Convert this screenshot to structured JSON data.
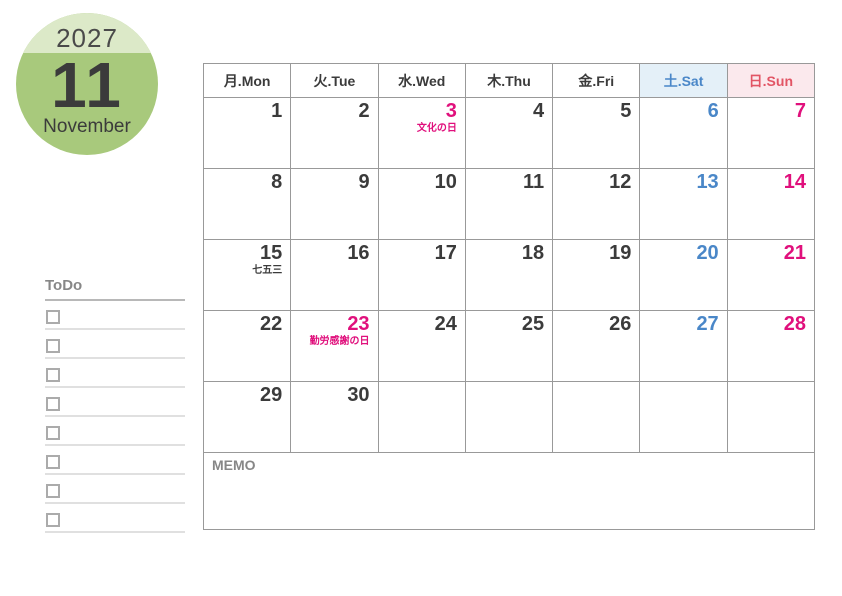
{
  "badge": {
    "year": "2027",
    "month_number": "11",
    "month_name": "November"
  },
  "todo": {
    "label": "ToDo",
    "rows": 8
  },
  "calendar": {
    "weekday_headers": [
      {
        "label": "月.Mon",
        "type": "weekday"
      },
      {
        "label": "火.Tue",
        "type": "weekday"
      },
      {
        "label": "水.Wed",
        "type": "weekday"
      },
      {
        "label": "木.Thu",
        "type": "weekday"
      },
      {
        "label": "金.Fri",
        "type": "weekday"
      },
      {
        "label": "土.Sat",
        "type": "saturday"
      },
      {
        "label": "日.Sun",
        "type": "sunday"
      }
    ],
    "weeks": [
      [
        {
          "date": "1"
        },
        {
          "date": "2"
        },
        {
          "date": "3",
          "type": "holiday",
          "label": "文化の日",
          "label_type": "holiday"
        },
        {
          "date": "4"
        },
        {
          "date": "5"
        },
        {
          "date": "6",
          "type": "saturday"
        },
        {
          "date": "7",
          "type": "sunday"
        }
      ],
      [
        {
          "date": "8"
        },
        {
          "date": "9"
        },
        {
          "date": "10"
        },
        {
          "date": "11"
        },
        {
          "date": "12"
        },
        {
          "date": "13",
          "type": "saturday"
        },
        {
          "date": "14",
          "type": "sunday"
        }
      ],
      [
        {
          "date": "15",
          "label": "七五三",
          "label_type": "note"
        },
        {
          "date": "16"
        },
        {
          "date": "17"
        },
        {
          "date": "18"
        },
        {
          "date": "19"
        },
        {
          "date": "20",
          "type": "saturday"
        },
        {
          "date": "21",
          "type": "sunday"
        }
      ],
      [
        {
          "date": "22"
        },
        {
          "date": "23",
          "type": "holiday",
          "label": "勤労感謝の日",
          "label_type": "holiday"
        },
        {
          "date": "24"
        },
        {
          "date": "25"
        },
        {
          "date": "26"
        },
        {
          "date": "27",
          "type": "saturday"
        },
        {
          "date": "28",
          "type": "sunday"
        }
      ],
      [
        {
          "date": "29"
        },
        {
          "date": "30"
        },
        {},
        {},
        {},
        {},
        {}
      ]
    ],
    "memo_label": "MEMO"
  },
  "colors": {
    "green_main": "#a8c97c",
    "green_light": "#dce9c8",
    "text_dark": "#3b3b3b",
    "gray_label": "#878787",
    "grid_border": "#999999",
    "sat_blue": "#4a87c8",
    "sat_bg": "#e4f0f8",
    "sun_red": "#e25565",
    "sun_bg": "#fbe9ed",
    "holiday_pink": "#e0107c"
  }
}
